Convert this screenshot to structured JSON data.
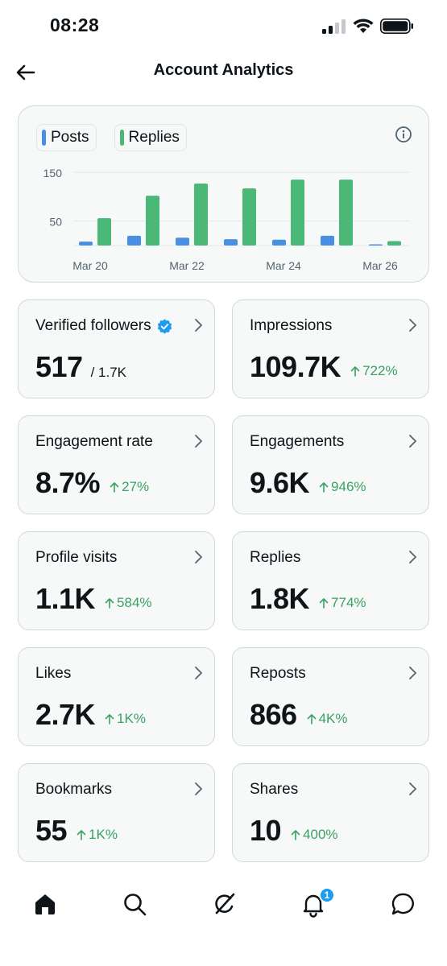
{
  "status_bar": {
    "time": "08:28"
  },
  "header": {
    "title": "Account Analytics"
  },
  "chart": {
    "legend": [
      {
        "label": "Posts",
        "color": "#4a90e2"
      },
      {
        "label": "Replies",
        "color": "#4cb877"
      }
    ]
  },
  "chart_data": {
    "type": "bar",
    "x": [
      "Mar 20",
      "Mar 21",
      "Mar 22",
      "Mar 23",
      "Mar 24",
      "Mar 25",
      "Mar 26"
    ],
    "x_tick_labels": [
      "Mar 20",
      "Mar 22",
      "Mar 24",
      "Mar 26"
    ],
    "y_tick_labels": [
      "150",
      "50"
    ],
    "ylim": [
      0,
      150
    ],
    "series": [
      {
        "name": "Posts",
        "color": "#4a90e2",
        "values": [
          8,
          20,
          16,
          13,
          12,
          20,
          1
        ]
      },
      {
        "name": "Replies",
        "color": "#4cb877",
        "values": [
          56,
          102,
          127,
          117,
          135,
          135,
          9
        ]
      }
    ]
  },
  "metrics": [
    {
      "label": "Verified followers",
      "value": "517",
      "sub": "/ 1.7K",
      "verified": true
    },
    {
      "label": "Impressions",
      "value": "109.7K",
      "change": "722%"
    },
    {
      "label": "Engagement rate",
      "value": "8.7%",
      "change": "27%"
    },
    {
      "label": "Engagements",
      "value": "9.6K",
      "change": "946%"
    },
    {
      "label": "Profile visits",
      "value": "1.1K",
      "change": "584%"
    },
    {
      "label": "Replies",
      "value": "1.8K",
      "change": "774%"
    },
    {
      "label": "Likes",
      "value": "2.7K",
      "change": "1K%"
    },
    {
      "label": "Reposts",
      "value": "866",
      "change": "4K%"
    },
    {
      "label": "Bookmarks",
      "value": "55",
      "change": "1K%"
    },
    {
      "label": "Shares",
      "value": "10",
      "change": "400%"
    }
  ],
  "bottom_nav": {
    "items": [
      "home-icon",
      "search-icon",
      "grok-icon",
      "notifications-icon",
      "messages-icon"
    ],
    "notification_count": "1"
  }
}
